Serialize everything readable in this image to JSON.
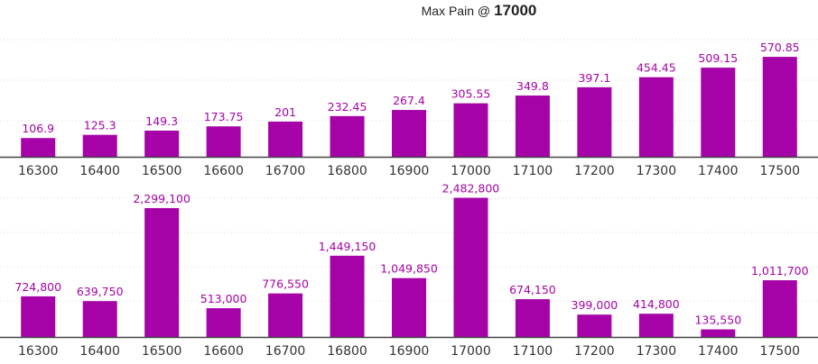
{
  "title": {
    "prefix": "Max Pain @",
    "value": "17000"
  },
  "colors": {
    "bar": "#a503a7",
    "data_label": "#a503a7",
    "axis": "#444444",
    "grid": "#d8d8d8",
    "tick_label": "#333333"
  },
  "chart_data": [
    {
      "type": "bar",
      "categories": [
        "16300",
        "16400",
        "16500",
        "16600",
        "16700",
        "16800",
        "16900",
        "17000",
        "17100",
        "17200",
        "17300",
        "17400",
        "17500"
      ],
      "values": [
        106.9,
        125.3,
        149.3,
        173.75,
        201,
        232.45,
        267.4,
        305.55,
        349.8,
        397.1,
        454.45,
        509.15,
        570.85
      ],
      "data_labels": [
        "106.9",
        "125.3",
        "149.3",
        "173.75",
        "201",
        "232.45",
        "267.4",
        "305.55",
        "349.8",
        "397.1",
        "454.45",
        "509.15",
        "570.85"
      ],
      "ylim": [
        0,
        700
      ],
      "grid": true,
      "xlabel": "",
      "ylabel": ""
    },
    {
      "type": "bar",
      "categories": [
        "16300",
        "16400",
        "16500",
        "16600",
        "16700",
        "16800",
        "16900",
        "17000",
        "17100",
        "17200",
        "17300",
        "17400",
        "17500"
      ],
      "values": [
        724800,
        639750,
        2299100,
        513000,
        776550,
        1449150,
        1049850,
        2482800,
        674150,
        399000,
        414800,
        135550,
        1011700
      ],
      "data_labels": [
        "724,800",
        "639,750",
        "2,299,100",
        "513,000",
        "776,550",
        "1,449,150",
        "1,049,850",
        "2,482,800",
        "674,150",
        "399,000",
        "414,800",
        "135,550",
        "1,011,700"
      ],
      "ylim": [
        0,
        2700000
      ],
      "grid": true,
      "xlabel": "",
      "ylabel": ""
    }
  ]
}
